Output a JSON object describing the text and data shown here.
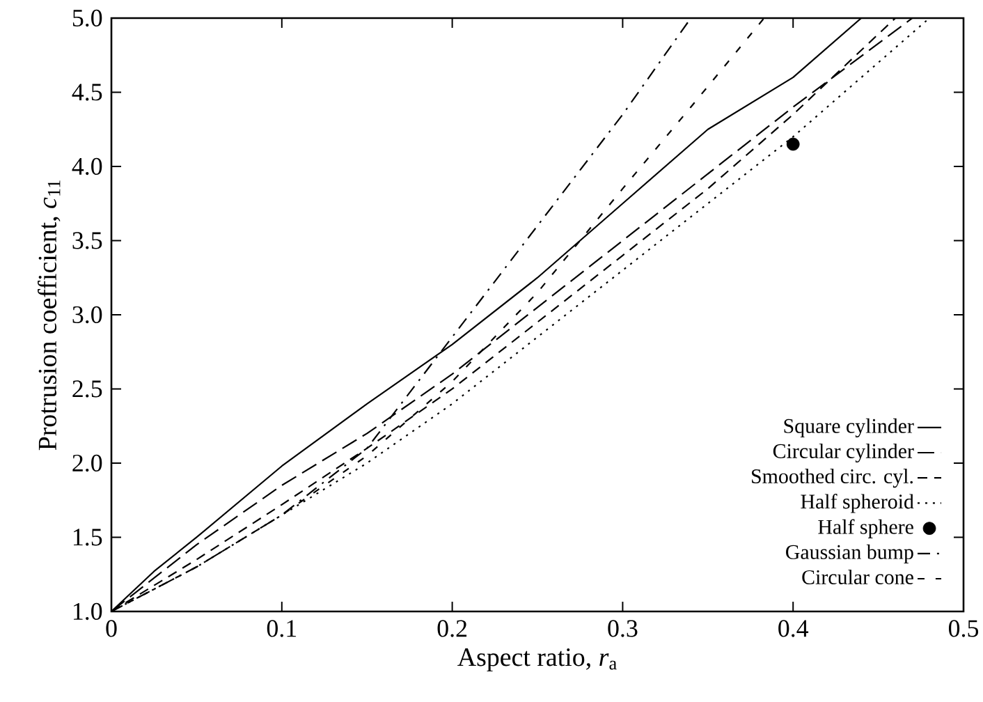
{
  "chart_data": {
    "type": "line",
    "xlabel": "Aspect ratio, *r*$_{a}$",
    "ylabel": "Protrusion coefficient, *c*$_{11}$",
    "xlim": [
      0,
      0.5
    ],
    "ylim": [
      1.0,
      5.0
    ],
    "xticks": [
      0,
      0.1,
      0.2,
      0.3,
      0.4,
      0.5
    ],
    "yticks": [
      {
        "value": 1.0,
        "label": "1.0"
      },
      {
        "value": 1.5,
        "label": "1.5"
      },
      {
        "value": 2.0,
        "label": "2.0"
      },
      {
        "value": 2.5,
        "label": "2.5"
      },
      {
        "value": 3.0,
        "label": "3.0"
      },
      {
        "value": 3.5,
        "label": "3.5"
      },
      {
        "value": 4.0,
        "label": "4.0"
      },
      {
        "value": 4.5,
        "label": "4.5"
      },
      {
        "value": 5.0,
        "label": "5.0"
      }
    ],
    "grid": false,
    "legend": "bottom right",
    "series": [
      {
        "name": "Square cylinder",
        "color": "#000000",
        "line_style": "solid",
        "marker": "none",
        "x": [
          0,
          0.025,
          0.05,
          0.1,
          0.15,
          0.2,
          0.25,
          0.3,
          0.35,
          0.4,
          0.44
        ],
        "values": [
          1.0,
          1.27,
          1.5,
          1.98,
          2.4,
          2.8,
          3.25,
          3.75,
          4.25,
          4.6,
          5.0
        ]
      },
      {
        "name": "Circular cylinder",
        "color": "#000000",
        "line_style": "long dashed",
        "marker": "none",
        "x": [
          0,
          0.02,
          0.05,
          0.1,
          0.15,
          0.2,
          0.25,
          0.3,
          0.35,
          0.4,
          0.47
        ],
        "values": [
          1.0,
          1.18,
          1.45,
          1.85,
          2.2,
          2.6,
          3.05,
          3.5,
          3.95,
          4.4,
          5.0
        ]
      },
      {
        "name": "Smoothed circ. cyl.",
        "color": "#000000",
        "line_style": "dashed",
        "marker": "none",
        "x": [
          0,
          0.05,
          0.1,
          0.15,
          0.2,
          0.25,
          0.3,
          0.35,
          0.4,
          0.46
        ],
        "values": [
          1.0,
          1.35,
          1.72,
          2.1,
          2.5,
          2.95,
          3.4,
          3.85,
          4.35,
          5.0
        ]
      },
      {
        "name": "Half spheroid",
        "color": "#000000",
        "line_style": "dotted",
        "marker": "none",
        "x": [
          0,
          0.05,
          0.1,
          0.15,
          0.2,
          0.25,
          0.3,
          0.35,
          0.4,
          0.48
        ],
        "values": [
          1.0,
          1.3,
          1.65,
          2.0,
          2.4,
          2.85,
          3.3,
          3.75,
          4.2,
          5.0
        ]
      },
      {
        "name": "Half sphere",
        "type": "scatter",
        "color": "#000000",
        "marker": "circle",
        "x": [
          0.4
        ],
        "values": [
          4.15
        ]
      },
      {
        "name": "Gaussian bump",
        "color": "#000000",
        "line_style": "dash dot",
        "marker": "none",
        "x": [
          0,
          0.05,
          0.1,
          0.15,
          0.2,
          0.25,
          0.3,
          0.34
        ],
        "values": [
          1.0,
          1.3,
          1.65,
          2.1,
          2.85,
          3.6,
          4.35,
          5.0
        ]
      },
      {
        "name": "Circular cone",
        "color": "#000000",
        "line_style": "loosely dashed",
        "marker": "none",
        "x": [
          0,
          0.05,
          0.1,
          0.15,
          0.2,
          0.25,
          0.3,
          0.34,
          0.383
        ],
        "values": [
          1.0,
          1.3,
          1.65,
          2.05,
          2.55,
          3.15,
          3.85,
          4.4,
          5.0
        ]
      }
    ]
  }
}
